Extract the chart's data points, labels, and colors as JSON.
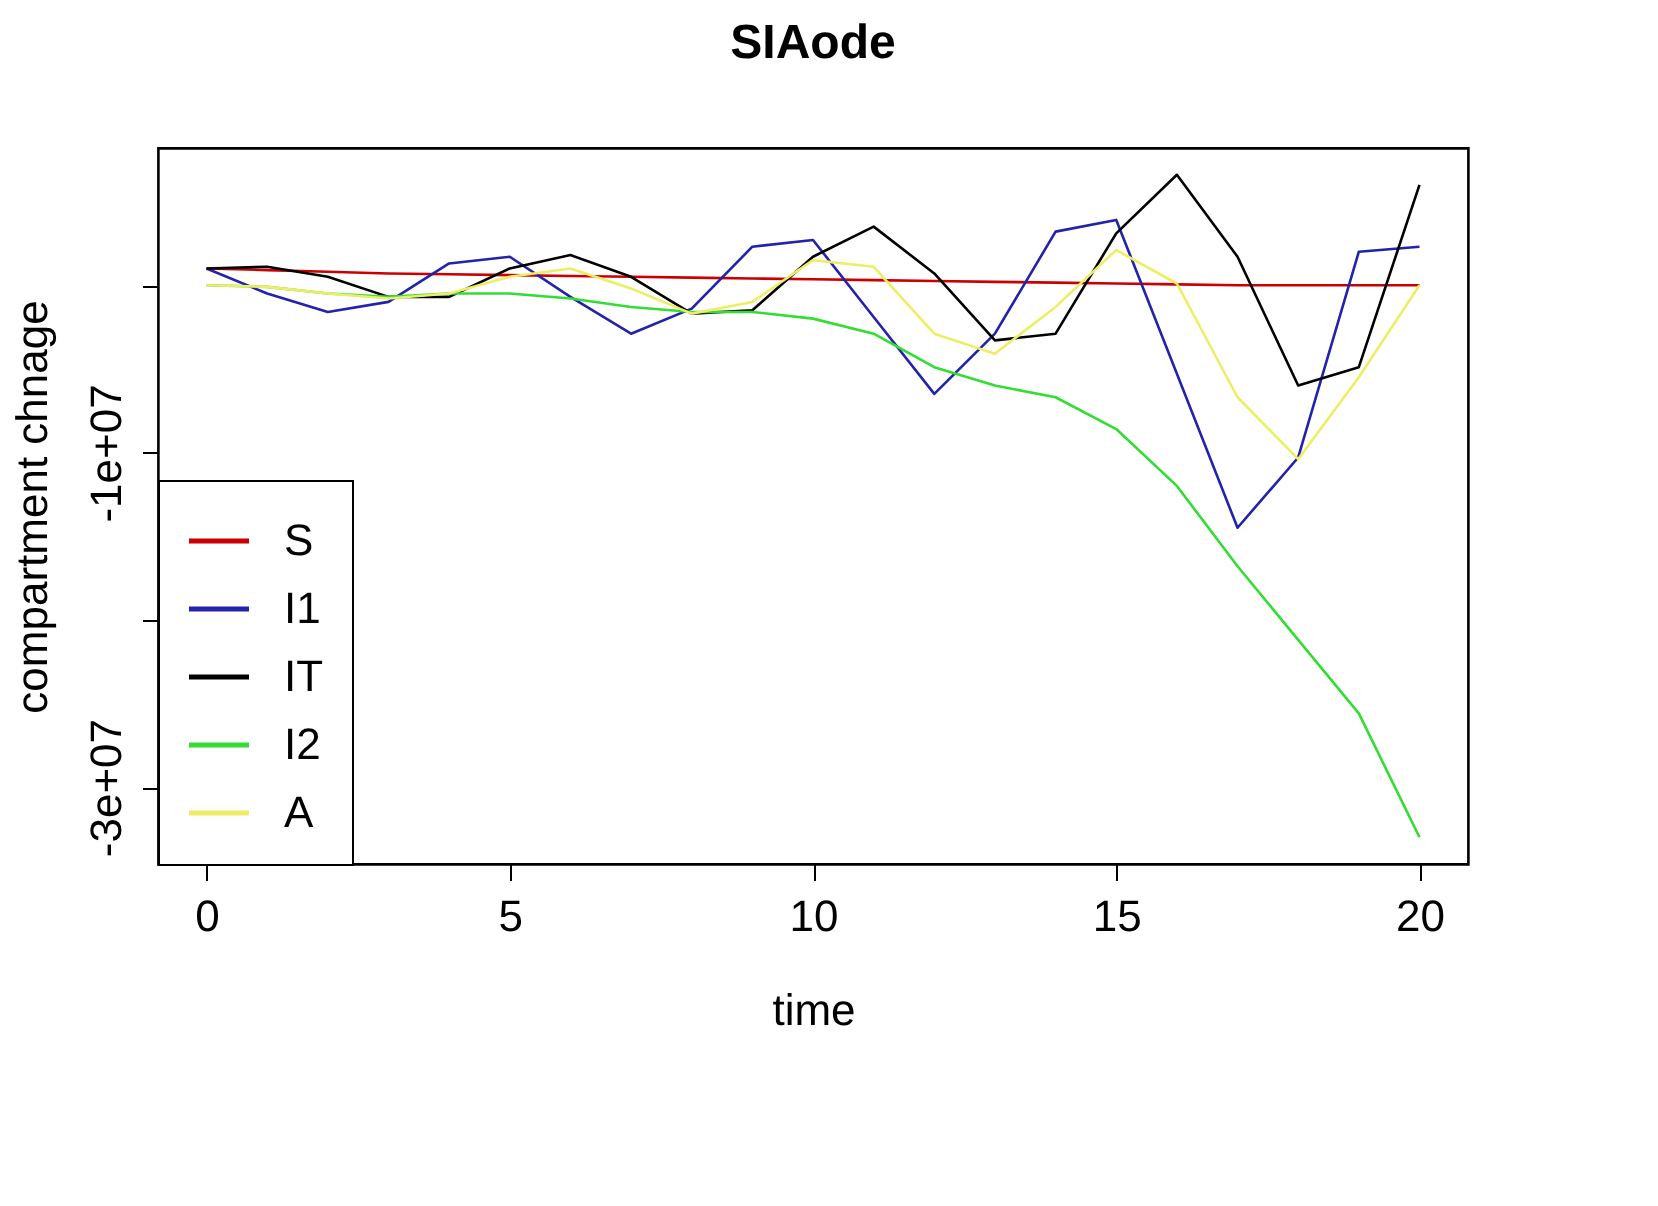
{
  "chart_data": {
    "type": "line",
    "title": "SIAode",
    "xlabel": "time",
    "ylabel": "compartment chnage",
    "x": [
      0,
      1,
      2,
      3,
      4,
      5,
      6,
      7,
      8,
      9,
      10,
      11,
      12,
      13,
      14,
      15,
      16,
      17,
      18,
      19,
      20
    ],
    "xlim": [
      -0.8,
      20.8
    ],
    "xticks": [
      0,
      5,
      10,
      15,
      20
    ],
    "ylim": [
      -34600000,
      8200000
    ],
    "yticks": [
      {
        "value": -30000000,
        "label": "-3e+07"
      },
      {
        "value": -20000000,
        "label": null
      },
      {
        "value": -10000000,
        "label": "-1e+07"
      },
      {
        "value": 0,
        "label": null
      }
    ],
    "grid": false,
    "legend": "bottom left",
    "series": [
      {
        "name": "S",
        "color": "#cc0000",
        "values": [
          1000000,
          900000,
          800000,
          700000,
          650000,
          600000,
          550000,
          500000,
          450000,
          400000,
          350000,
          300000,
          250000,
          200000,
          150000,
          100000,
          50000,
          0,
          0,
          0,
          0
        ]
      },
      {
        "name": "I1",
        "color": "#2222aa",
        "values": [
          1000000,
          -500000,
          -1600000,
          -1000000,
          1300000,
          1700000,
          -700000,
          -2900000,
          -1400000,
          2300000,
          2700000,
          -1900000,
          -6500000,
          -2900000,
          3200000,
          3900000,
          -5300000,
          -14500000,
          -10300000,
          2000000,
          2300000
        ]
      },
      {
        "name": "IT",
        "color": "#000000",
        "values": [
          1000000,
          1100000,
          500000,
          -700000,
          -700000,
          1000000,
          1800000,
          500000,
          -1700000,
          -1500000,
          1700000,
          3500000,
          700000,
          -3300000,
          -2900000,
          3100000,
          6600000,
          1700000,
          -6000000,
          -4900000,
          6000000
        ]
      },
      {
        "name": "I2",
        "color": "#33dd33",
        "values": [
          0,
          -100000,
          -500000,
          -700000,
          -500000,
          -500000,
          -800000,
          -1300000,
          -1600000,
          -1600000,
          -2000000,
          -2900000,
          -4900000,
          -6000000,
          -6700000,
          -8600000,
          -12000000,
          -16800000,
          -21200000,
          -25600000,
          -33000000
        ]
      },
      {
        "name": "A",
        "color": "#eeee66",
        "values": [
          0,
          -100000,
          -500000,
          -800000,
          -500000,
          500000,
          1000000,
          -200000,
          -1700000,
          -1000000,
          1500000,
          1100000,
          -2900000,
          -4100000,
          -1300000,
          2100000,
          100000,
          -6700000,
          -10400000,
          -5500000,
          0
        ]
      }
    ]
  }
}
